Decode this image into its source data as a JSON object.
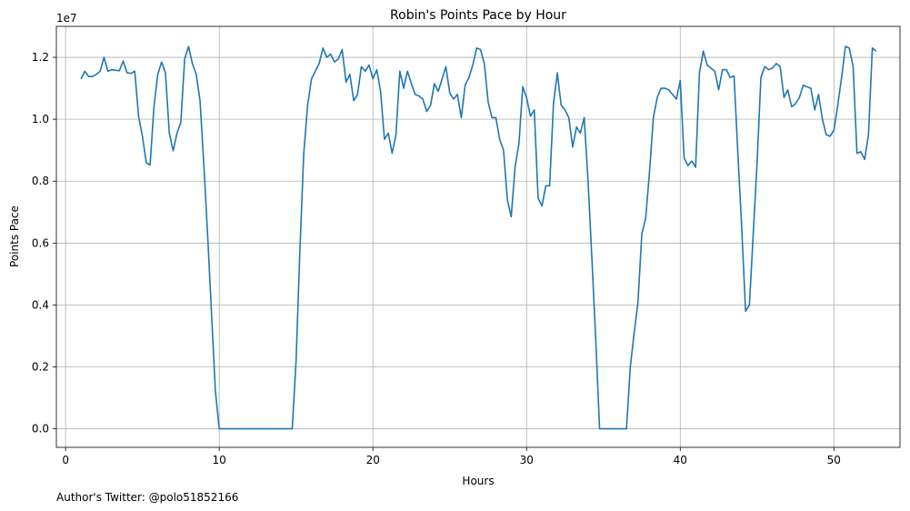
{
  "chart_data": {
    "type": "line",
    "title": "Robin's Points Pace by Hour",
    "xlabel": "Hours",
    "ylabel": "Points Pace",
    "offset_text": "1e7",
    "footnote": "Author's Twitter: @polo51852166",
    "xlim": [
      -0.6,
      54.3
    ],
    "ylim": [
      -600000,
      13000000
    ],
    "x_ticks": [
      0,
      10,
      20,
      30,
      40,
      50
    ],
    "x_tick_labels": [
      "0",
      "10",
      "20",
      "30",
      "40",
      "50"
    ],
    "y_ticks": [
      0,
      2000000,
      4000000,
      6000000,
      8000000,
      10000000,
      12000000
    ],
    "y_tick_labels": [
      "0.0",
      "0.2",
      "0.4",
      "0.6",
      "0.8",
      "1.0",
      "1.2"
    ],
    "grid": true,
    "line_color": "#1f77b4",
    "series": [
      {
        "x": [
          1.0,
          1.25,
          1.5,
          1.75,
          2.0,
          2.25,
          2.5,
          2.75,
          3.0,
          3.25,
          3.5,
          3.75,
          4.0,
          4.25,
          4.5,
          4.75,
          5.0,
          5.25,
          5.5,
          5.75,
          6.0,
          6.25,
          6.5,
          6.75,
          7.0,
          7.25,
          7.5,
          7.75,
          8.0,
          8.25,
          8.5,
          8.75,
          9.0,
          9.25,
          9.5,
          9.75,
          10.0,
          10.25,
          14.75,
          15.0,
          15.25,
          15.5,
          15.75,
          16.0,
          16.25,
          16.5,
          16.75,
          17.0,
          17.25,
          17.5,
          17.75,
          18.0,
          18.25,
          18.5,
          18.75,
          19.0,
          19.25,
          19.5,
          19.75,
          20.0,
          20.25,
          20.5,
          20.75,
          21.0,
          21.25,
          21.5,
          21.75,
          22.0,
          22.25,
          22.5,
          22.75,
          23.0,
          23.25,
          23.5,
          23.75,
          24.0,
          24.25,
          24.5,
          24.75,
          25.0,
          25.25,
          25.5,
          25.75,
          26.0,
          26.25,
          26.5,
          26.75,
          27.0,
          27.25,
          27.5,
          27.75,
          28.0,
          28.25,
          28.5,
          28.75,
          29.0,
          29.25,
          29.5,
          29.75,
          30.0,
          30.25,
          30.5,
          30.75,
          31.0,
          31.25,
          31.5,
          31.75,
          32.0,
          32.25,
          32.5,
          32.75,
          33.0,
          33.25,
          33.5,
          33.75,
          34.0,
          34.25,
          34.5,
          34.75,
          35.0,
          36.5,
          36.75,
          37.0,
          37.25,
          37.5,
          37.75,
          38.0,
          38.25,
          38.5,
          38.75,
          39.0,
          39.25,
          39.5,
          39.75,
          40.0,
          40.25,
          40.5,
          40.75,
          41.0,
          41.25,
          41.5,
          41.75,
          42.0,
          42.25,
          42.5,
          42.75,
          43.0,
          43.25,
          43.5,
          43.75,
          44.0,
          44.25,
          44.5,
          44.75,
          45.0,
          45.25,
          45.5,
          45.75,
          46.0,
          46.25,
          46.5,
          46.75,
          47.0,
          47.25,
          47.5,
          47.75,
          48.0,
          48.25,
          48.5,
          48.75,
          49.0,
          49.25,
          49.5,
          49.75,
          50.0,
          50.25,
          50.5,
          50.75,
          51.0,
          51.25,
          51.5,
          51.75,
          52.0,
          52.25,
          52.5,
          52.75
        ],
        "y": [
          11300000,
          11550000,
          11380000,
          11380000,
          11450000,
          11550000,
          12000000,
          11550000,
          11600000,
          11580000,
          11570000,
          11880000,
          11500000,
          11480000,
          11550000,
          10100000,
          9450000,
          8600000,
          8520000,
          10400000,
          11450000,
          11850000,
          11500000,
          9550000,
          8980000,
          9550000,
          9900000,
          11950000,
          12350000,
          11800000,
          11450000,
          10600000,
          8500000,
          6200000,
          3700000,
          1200000,
          0,
          0,
          0,
          2200000,
          5800000,
          8900000,
          10450000,
          11300000,
          11550000,
          11800000,
          12300000,
          12000000,
          12100000,
          11850000,
          11950000,
          12250000,
          11200000,
          11450000,
          10600000,
          10800000,
          11700000,
          11550000,
          11750000,
          11300000,
          11600000,
          10900000,
          9350000,
          9550000,
          8900000,
          9500000,
          11550000,
          11000000,
          11550000,
          11150000,
          10800000,
          10750000,
          10650000,
          10250000,
          10450000,
          11150000,
          10900000,
          11300000,
          11700000,
          10850000,
          10650000,
          10800000,
          10050000,
          11100000,
          11350000,
          11750000,
          12300000,
          12250000,
          11800000,
          10550000,
          10050000,
          10050000,
          9350000,
          9000000,
          7400000,
          6850000,
          8450000,
          9200000,
          11050000,
          10700000,
          10100000,
          10300000,
          7450000,
          7200000,
          7850000,
          7850000,
          10500000,
          11500000,
          10450000,
          10300000,
          10050000,
          9100000,
          9750000,
          9550000,
          10050000,
          8000000,
          5500000,
          2900000,
          0,
          0,
          0,
          2000000,
          3100000,
          4100000,
          6300000,
          6800000,
          8300000,
          10050000,
          10700000,
          11000000,
          11000000,
          10950000,
          10800000,
          10650000,
          11250000,
          8750000,
          8500000,
          8650000,
          8450000,
          11500000,
          12200000,
          11750000,
          11650000,
          11550000,
          10950000,
          11600000,
          11600000,
          11350000,
          11400000,
          8900000,
          6500000,
          3800000,
          4000000,
          6300000,
          8600000,
          11350000,
          11700000,
          11600000,
          11650000,
          11800000,
          11700000,
          10700000,
          10950000,
          10400000,
          10500000,
          10700000,
          11100000,
          11050000,
          11000000,
          10300000,
          10800000,
          10000000,
          9500000,
          9450000,
          9650000,
          10450000,
          11350000,
          12350000,
          12300000,
          11700000,
          8900000,
          8950000,
          8700000,
          9500000,
          12300000,
          12200000
        ]
      }
    ]
  }
}
